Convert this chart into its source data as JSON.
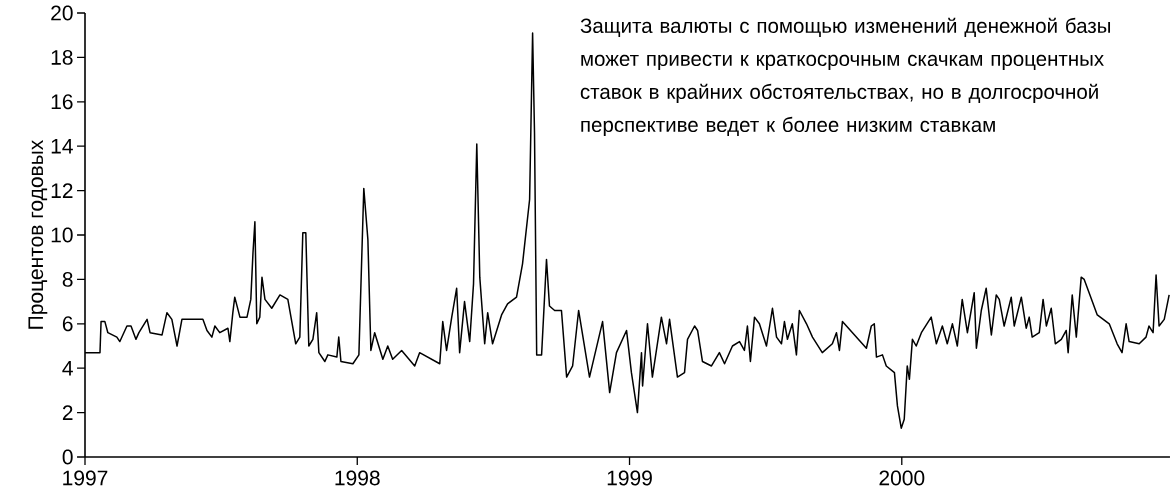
{
  "chart_data": {
    "type": "line",
    "ylabel": "Процентов годовых",
    "annotations": [
      "Защита валюты с помощью изменений денежной базы может привести к краткосрочным скачкам процентных ставок в крайних обстоятельствах, но в долгосрочной перспективе ведет к более низким ставкам"
    ],
    "color": "#000000",
    "xlim": [
      1997,
      2000.985
    ],
    "xticks": [
      1997,
      1998,
      1999,
      2000
    ],
    "ylim": [
      0,
      20
    ],
    "yticks": [
      0,
      2,
      4,
      6,
      8,
      10,
      12,
      14,
      16,
      18,
      20
    ],
    "x": [
      1997.0,
      1997.055,
      1997.059,
      1997.073,
      1997.084,
      1997.117,
      1997.128,
      1997.154,
      1997.169,
      1997.187,
      1997.198,
      1997.228,
      1997.239,
      1997.283,
      1997.301,
      1997.319,
      1997.338,
      1997.356,
      1997.433,
      1997.448,
      1997.466,
      1997.477,
      1997.495,
      1997.525,
      1997.532,
      1997.543,
      1997.55,
      1997.569,
      1997.595,
      1997.609,
      1997.617,
      1997.624,
      1997.631,
      1997.642,
      1997.65,
      1997.661,
      1997.686,
      1997.716,
      1997.745,
      1997.774,
      1997.789,
      1997.8,
      1997.811,
      1997.822,
      1997.837,
      1997.851,
      1997.859,
      1997.881,
      1997.892,
      1997.925,
      1997.932,
      1997.94,
      1997.984,
      1998.006,
      1998.017,
      1998.024,
      1998.039,
      1998.05,
      1998.064,
      1998.094,
      1998.112,
      1998.13,
      1998.163,
      1998.211,
      1998.229,
      1998.303,
      1998.314,
      1998.328,
      1998.347,
      1998.365,
      1998.376,
      1998.394,
      1998.413,
      1998.427,
      1998.439,
      1998.45,
      1998.468,
      1998.479,
      1998.497,
      1998.53,
      1998.552,
      1998.585,
      1998.607,
      1998.633,
      1998.644,
      1998.651,
      1998.659,
      1998.677,
      1998.695,
      1998.706,
      1998.725,
      1998.75,
      1998.769,
      1998.791,
      1998.813,
      1998.853,
      1998.901,
      1998.927,
      1998.952,
      1998.989,
      1999.007,
      1999.029,
      1999.044,
      1999.048,
      1999.066,
      1999.084,
      1999.117,
      1999.136,
      1999.147,
      1999.176,
      1999.202,
      1999.213,
      1999.239,
      1999.25,
      1999.268,
      1999.301,
      1999.33,
      1999.349,
      1999.378,
      1999.404,
      1999.422,
      1999.433,
      1999.444,
      1999.459,
      1999.477,
      1999.503,
      1999.525,
      1999.54,
      1999.558,
      1999.569,
      1999.58,
      1999.598,
      1999.613,
      1999.624,
      1999.65,
      1999.672,
      1999.708,
      1999.745,
      1999.76,
      1999.771,
      1999.782,
      1999.87,
      1999.888,
      1999.899,
      1999.907,
      1999.929,
      1999.943,
      1999.973,
      1999.984,
      1999.998,
      2000.009,
      2000.02,
      2000.028,
      2000.039,
      2000.053,
      2000.072,
      2000.108,
      2000.127,
      2000.149,
      2000.167,
      2000.186,
      2000.204,
      2000.222,
      2000.241,
      2000.266,
      2000.274,
      2000.292,
      2000.31,
      2000.329,
      2000.347,
      2000.358,
      2000.376,
      2000.402,
      2000.413,
      2000.439,
      2000.457,
      2000.468,
      2000.479,
      2000.505,
      2000.519,
      2000.531,
      2000.549,
      2000.564,
      2000.586,
      2000.604,
      2000.611,
      2000.626,
      2000.641,
      2000.659,
      2000.67,
      2000.688,
      2000.718,
      2000.762,
      2000.791,
      2000.809,
      2000.824,
      2000.835,
      2000.872,
      2000.897,
      2000.908,
      2000.923,
      2000.934,
      2000.945,
      2000.964,
      2000.982
    ],
    "values": [
      4.7,
      4.7,
      6.1,
      6.1,
      5.6,
      5.4,
      5.2,
      5.9,
      5.9,
      5.3,
      5.6,
      6.2,
      5.6,
      5.5,
      6.5,
      6.2,
      5.0,
      6.2,
      6.2,
      5.7,
      5.4,
      5.9,
      5.6,
      5.8,
      5.2,
      6.5,
      7.2,
      6.3,
      6.3,
      7.1,
      9.2,
      10.6,
      6.0,
      6.3,
      8.1,
      7.1,
      6.7,
      7.3,
      7.1,
      5.1,
      5.4,
      10.1,
      10.1,
      5.0,
      5.3,
      6.5,
      4.7,
      4.3,
      4.6,
      4.5,
      5.4,
      4.3,
      4.2,
      4.6,
      9.2,
      12.1,
      9.8,
      4.8,
      5.6,
      4.4,
      5.0,
      4.4,
      4.8,
      4.1,
      4.7,
      4.2,
      6.1,
      4.8,
      6.3,
      7.6,
      4.7,
      7.0,
      5.2,
      7.8,
      14.1,
      8.1,
      5.1,
      6.5,
      5.1,
      6.4,
      6.9,
      7.2,
      8.7,
      11.6,
      19.1,
      14.6,
      4.6,
      4.6,
      8.9,
      6.8,
      6.6,
      6.6,
      3.6,
      4.1,
      6.6,
      3.6,
      6.1,
      2.9,
      4.7,
      5.7,
      3.8,
      2.0,
      4.7,
      3.2,
      6.0,
      3.6,
      6.3,
      5.1,
      6.2,
      3.6,
      3.8,
      5.3,
      5.9,
      5.7,
      4.3,
      4.1,
      4.7,
      4.2,
      5.0,
      5.2,
      4.8,
      5.9,
      4.3,
      6.3,
      6.0,
      5.0,
      6.7,
      5.4,
      5.1,
      6.1,
      5.3,
      6.0,
      4.6,
      6.6,
      6.0,
      5.4,
      4.7,
      5.1,
      5.6,
      4.8,
      6.1,
      4.9,
      5.9,
      6.0,
      4.5,
      4.6,
      4.1,
      3.8,
      2.3,
      1.3,
      1.7,
      4.1,
      3.5,
      5.3,
      5.0,
      5.6,
      6.3,
      5.1,
      5.9,
      5.1,
      6.0,
      5.0,
      7.1,
      5.6,
      7.4,
      4.9,
      6.6,
      7.6,
      5.5,
      7.3,
      7.1,
      5.9,
      7.2,
      5.9,
      7.2,
      5.8,
      6.3,
      5.4,
      5.6,
      7.1,
      5.9,
      6.7,
      5.1,
      5.3,
      5.7,
      4.7,
      7.3,
      5.4,
      8.1,
      8.0,
      7.4,
      6.4,
      6.0,
      5.1,
      4.7,
      6.0,
      5.2,
      5.1,
      5.4,
      5.9,
      5.6,
      8.2,
      5.9,
      6.2,
      7.3
    ]
  }
}
